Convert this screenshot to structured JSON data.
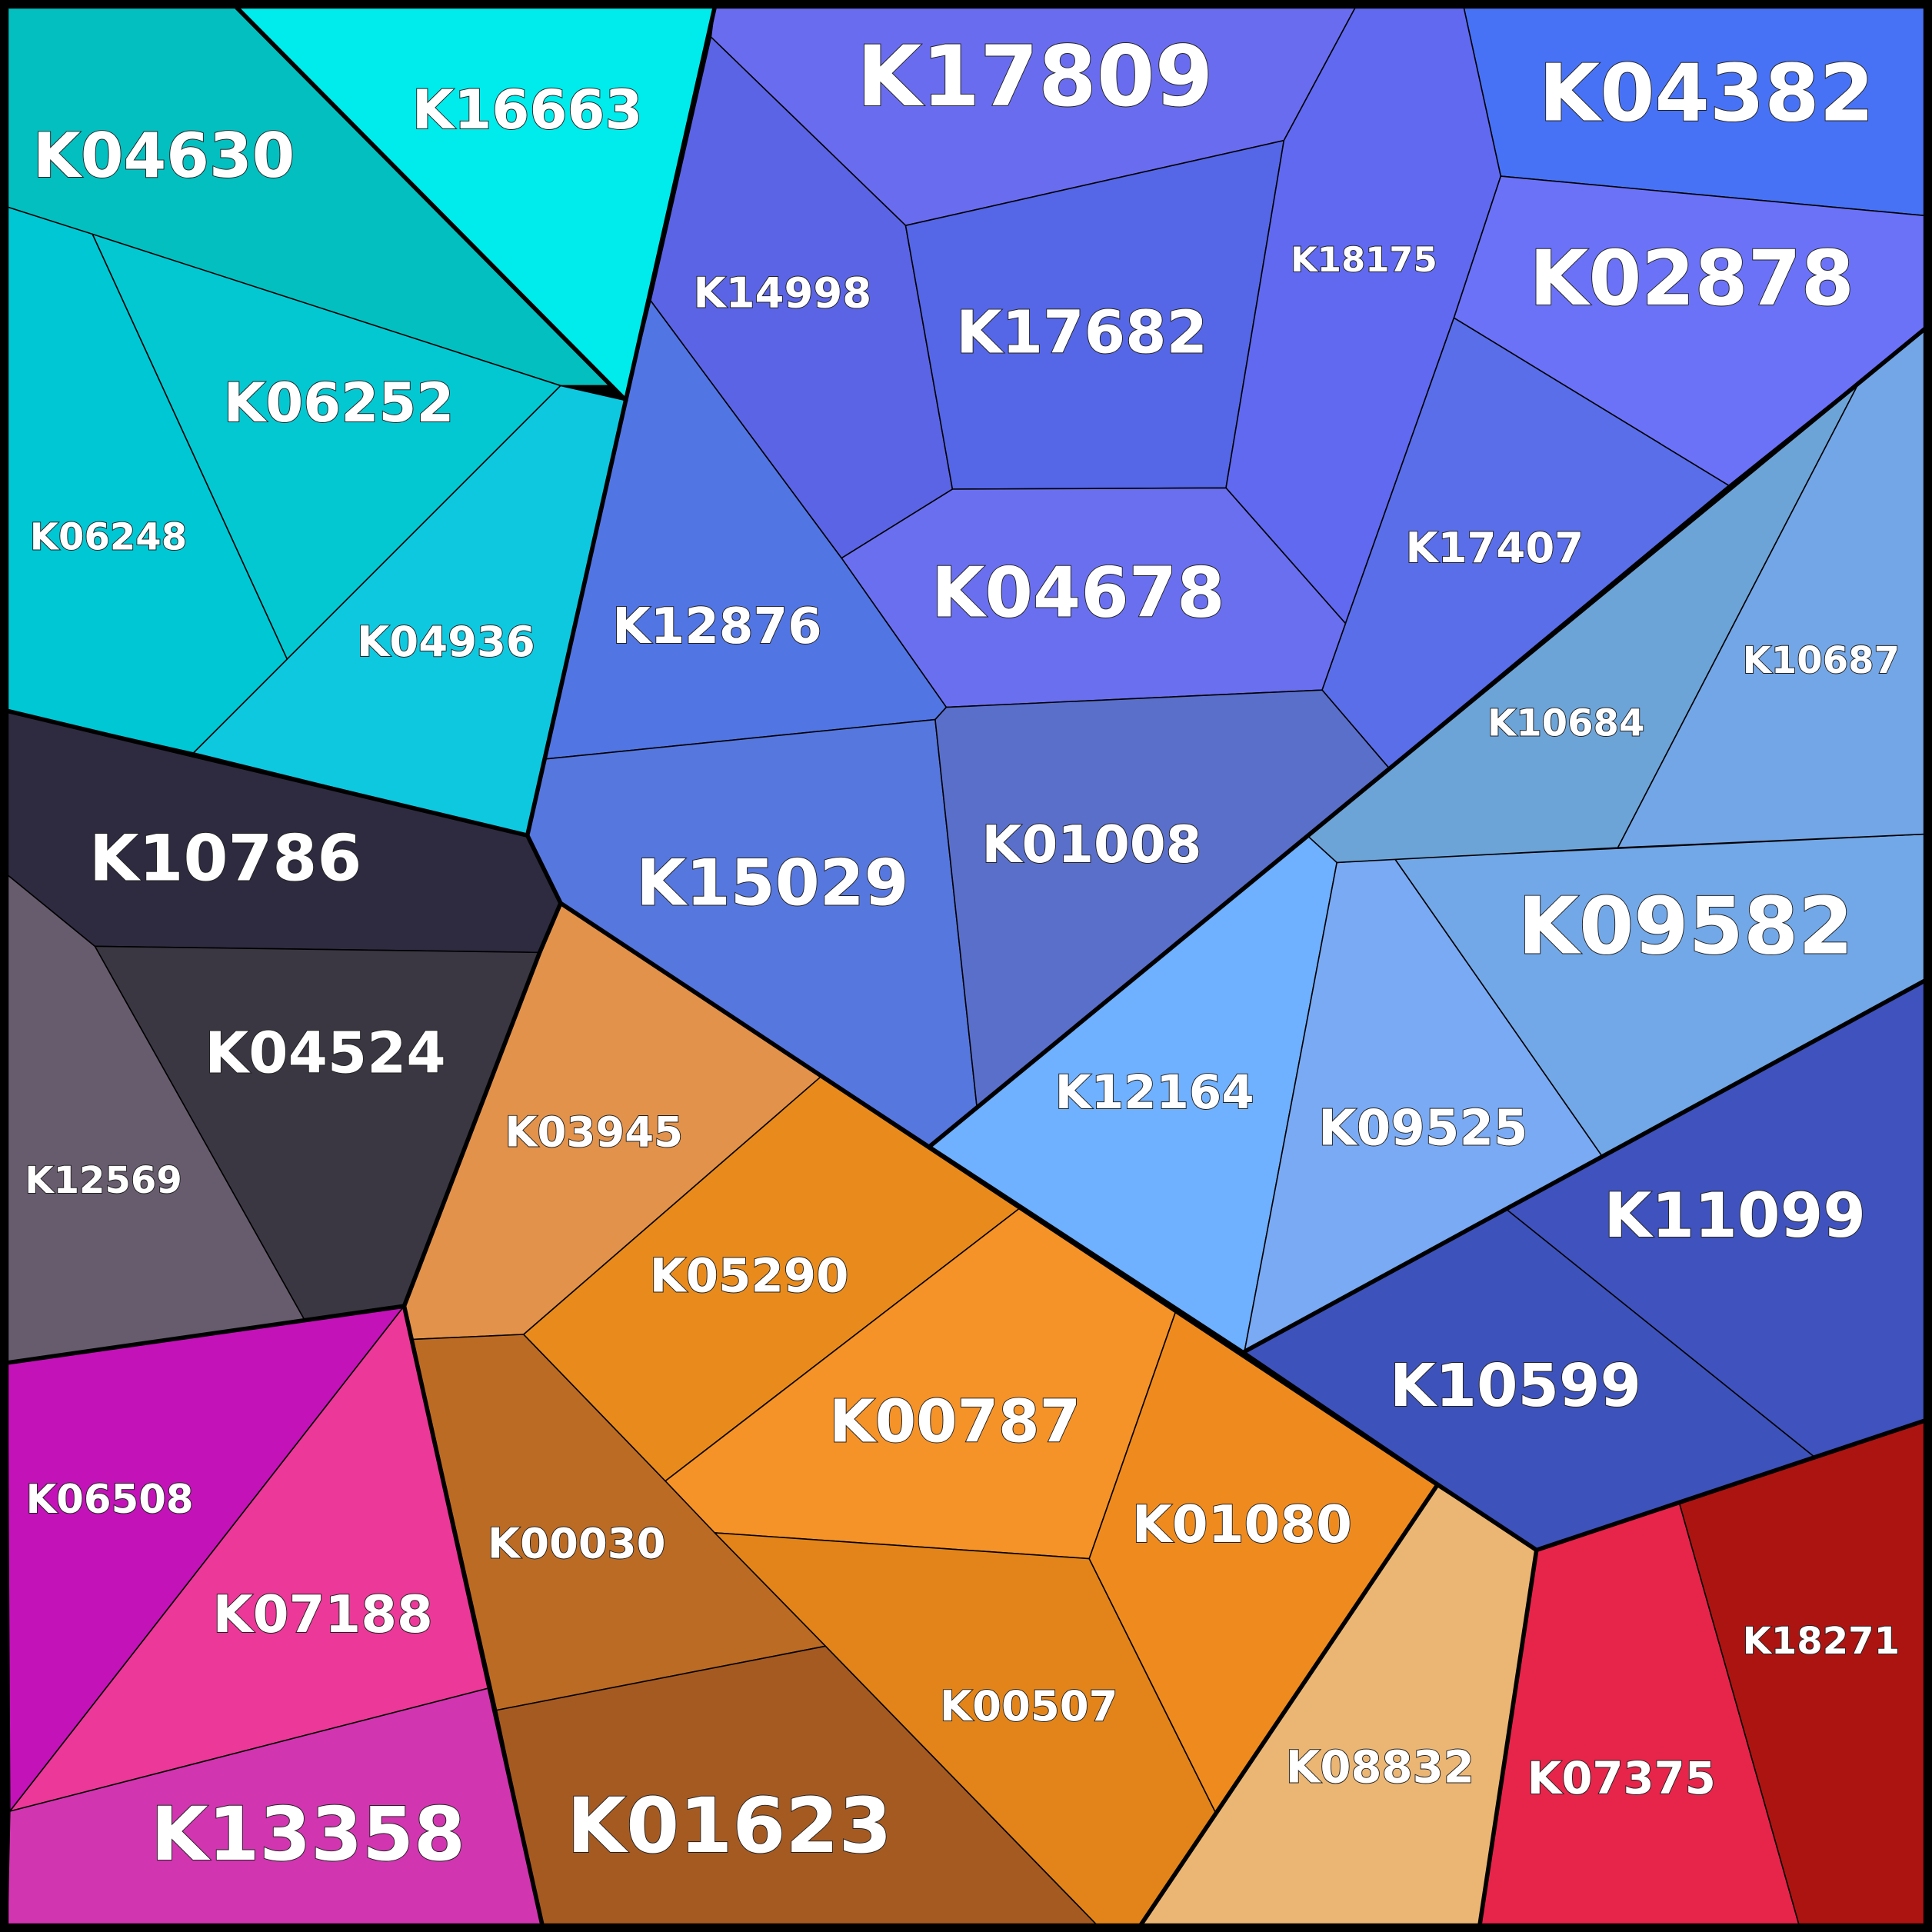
{
  "cells": [
    {
      "label": "K04630"
    },
    {
      "label": "K16663"
    },
    {
      "label": "K06252"
    },
    {
      "label": "K04936"
    },
    {
      "label": "K06248"
    },
    {
      "label": "K10786"
    },
    {
      "label": "K04524"
    },
    {
      "label": "K12569"
    },
    {
      "label": "K06508"
    },
    {
      "label": "K07188"
    },
    {
      "label": "K13358"
    },
    {
      "label": "K03945"
    },
    {
      "label": "K00030"
    },
    {
      "label": "K01623"
    },
    {
      "label": "K05290"
    },
    {
      "label": "K00787"
    },
    {
      "label": "K00507"
    },
    {
      "label": "K01080"
    },
    {
      "label": "K08832"
    },
    {
      "label": "K07375"
    },
    {
      "label": "K18271"
    },
    {
      "label": "K11099"
    },
    {
      "label": "K10599"
    },
    {
      "label": "K12164"
    },
    {
      "label": "K09525"
    },
    {
      "label": "K09582"
    },
    {
      "label": "K10684"
    },
    {
      "label": "K10687"
    },
    {
      "label": "K17809"
    },
    {
      "label": "K04382"
    },
    {
      "label": "K14998"
    },
    {
      "label": "K17682"
    },
    {
      "label": "K18175"
    },
    {
      "label": "K02878"
    },
    {
      "label": "K17407"
    },
    {
      "label": "K04678"
    },
    {
      "label": "K12876"
    },
    {
      "label": "K15029"
    },
    {
      "label": "K01008"
    }
  ]
}
